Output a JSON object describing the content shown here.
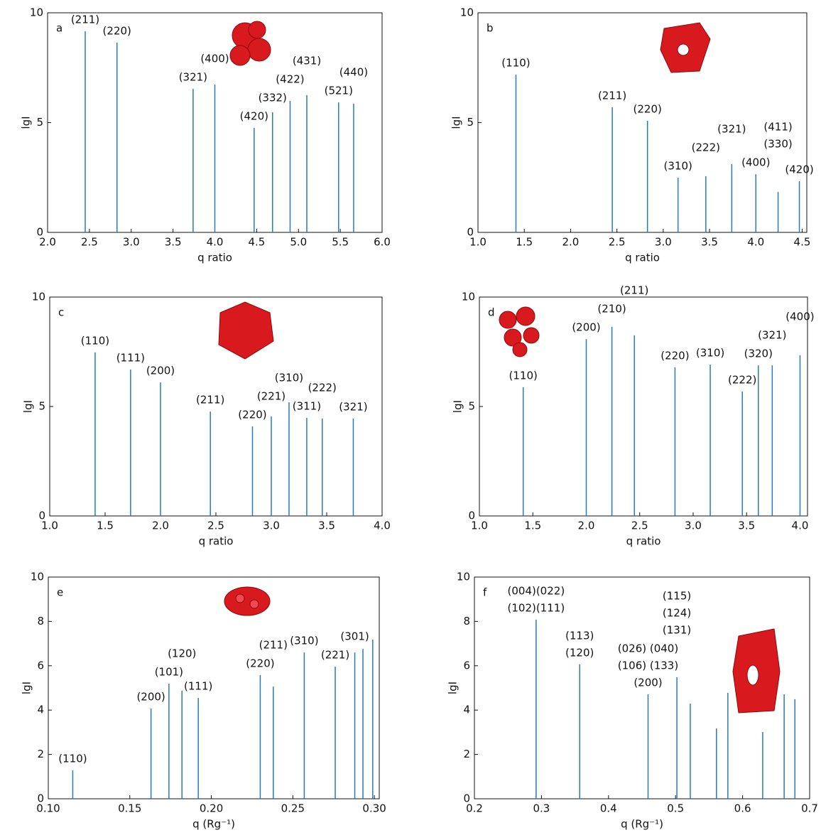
{
  "chart_data": [
    {
      "type": "stem",
      "panel": "a",
      "color": "#2a7ab8",
      "xlabel": "q ratio",
      "ylabel": "lgI",
      "x": [
        2.45,
        2.83,
        3.74,
        4.0,
        4.47,
        4.69,
        4.9,
        5.1,
        5.48,
        5.66
      ],
      "values": [
        9.16,
        8.64,
        6.54,
        6.73,
        4.76,
        5.47,
        5.99,
        6.25,
        5.92,
        5.86
      ],
      "labels": [
        [
          "(211)"
        ],
        [
          "(220)"
        ],
        [
          "(321)"
        ],
        [
          "(400)"
        ],
        [
          "(420)"
        ],
        [
          "(332)"
        ],
        [
          "(422)"
        ],
        [
          "(431)"
        ],
        [
          "(521)"
        ],
        [
          "(440)"
        ]
      ],
      "xlim": [
        2.0,
        6.0
      ],
      "ylim": [
        0,
        10
      ],
      "xticks": [
        {
          "value": 2,
          "label": "2.0"
        },
        2.5,
        {
          "value": 3,
          "label": "3.0"
        },
        3.5,
        {
          "value": 4,
          "label": "4.0"
        },
        4.5,
        {
          "value": 5,
          "label": "5.0"
        },
        5.5,
        {
          "value": 6,
          "label": "6.0"
        }
      ],
      "yticks": [
        0,
        5,
        10
      ]
    },
    {
      "type": "stem",
      "panel": "b",
      "color": "#2a7ab8",
      "xlabel": "q ratio",
      "ylabel": "lgI",
      "x": [
        1.41,
        2.45,
        2.83,
        3.16,
        3.46,
        3.74,
        4.0,
        4.24,
        4.47
      ],
      "values": [
        7.18,
        5.7,
        5.08,
        2.49,
        2.56,
        3.11,
        2.65,
        1.84,
        2.33
      ],
      "labels": [
        [
          "(110)"
        ],
        [
          "(211)"
        ],
        [
          "(220)"
        ],
        [
          "(310)"
        ],
        [
          "(222)"
        ],
        [
          "(321)"
        ],
        [
          "(400)"
        ],
        [
          "(411)",
          "(330)"
        ],
        [
          "(420)"
        ]
      ],
      "xlim": [
        1.0,
        4.55
      ],
      "ylim": [
        0,
        10
      ],
      "xticks": [
        {
          "value": 1,
          "label": "1.0"
        },
        1.5,
        {
          "value": 2,
          "label": "2.0"
        },
        2.5,
        {
          "value": 3,
          "label": "3.0"
        },
        3.5,
        {
          "value": 4,
          "label": "4.0"
        },
        4.5
      ],
      "yticks": [
        0,
        5,
        10
      ]
    },
    {
      "type": "stem",
      "panel": "c",
      "color": "#2a7ab8",
      "xlabel": "q ratio",
      "ylabel": "lgI",
      "x": [
        1.41,
        1.73,
        2.0,
        2.45,
        2.83,
        3.0,
        3.16,
        3.32,
        3.46,
        3.74
      ],
      "values": [
        7.47,
        6.69,
        6.1,
        4.77,
        4.09,
        4.55,
        5.19,
        4.48,
        4.45,
        4.45
      ],
      "labels": [
        [
          "(110)"
        ],
        [
          "(111)"
        ],
        [
          "(200)"
        ],
        [
          "(211)"
        ],
        [
          "(220)"
        ],
        [
          "(221)"
        ],
        [
          "(310)"
        ],
        [
          "(311)"
        ],
        [
          "(222)"
        ],
        [
          "(321)"
        ]
      ],
      "xlim": [
        1.0,
        4.0
      ],
      "ylim": [
        0,
        10
      ],
      "xticks": [
        {
          "value": 1,
          "label": "1.0"
        },
        1.5,
        {
          "value": 2,
          "label": "2.0"
        },
        2.5,
        {
          "value": 3,
          "label": "3.0"
        },
        3.5,
        {
          "value": 4,
          "label": "4.0"
        }
      ],
      "yticks": [
        0,
        5,
        10
      ]
    },
    {
      "type": "stem",
      "panel": "d",
      "color": "#2a7ab8",
      "xlabel": "q ratio",
      "ylabel": "lgI",
      "x": [
        1.41,
        2.0,
        2.24,
        2.45,
        2.83,
        3.16,
        3.46,
        3.61,
        3.74,
        4.0
      ],
      "values": [
        5.88,
        8.08,
        8.64,
        8.25,
        6.79,
        6.92,
        5.68,
        6.88,
        6.88,
        7.34
      ],
      "labels": [
        [
          "(110)"
        ],
        [
          "(200)"
        ],
        [
          "(210)"
        ],
        [
          "(211)"
        ],
        [
          "(220)"
        ],
        [
          "(310)"
        ],
        [
          "(222)"
        ],
        [
          "(320)"
        ],
        [
          "(321)"
        ],
        [
          "(400)"
        ]
      ],
      "xlim": [
        1.0,
        4.07
      ],
      "ylim": [
        0,
        10
      ],
      "xticks": [
        {
          "value": 1,
          "label": "1.0"
        },
        1.5,
        {
          "value": 2,
          "label": "2.0"
        },
        2.5,
        {
          "value": 3,
          "label": "3.0"
        },
        3.5,
        {
          "value": 4,
          "label": "4.0"
        }
      ],
      "yticks": [
        0,
        5,
        10
      ]
    },
    {
      "type": "stem",
      "panel": "e",
      "color": "#2a7ab8",
      "xlabel": "q (Rg⁻¹)",
      "ylabel": "lgI",
      "x": [
        0.115,
        0.163,
        0.174,
        0.182,
        0.192,
        0.23,
        0.238,
        0.257,
        0.276,
        0.288,
        0.293,
        0.299
      ],
      "values": [
        1.28,
        4.07,
        5.19,
        4.87,
        4.55,
        5.58,
        5.06,
        6.6,
        5.96,
        6.6,
        6.76,
        7.18
      ],
      "labels": [
        [
          "(110)"
        ],
        [
          "(200)"
        ],
        [
          "(101)"
        ],
        [
          "(120)"
        ],
        [
          "(111)"
        ],
        [
          "(220)"
        ],
        [
          "(211)"
        ],
        [
          "(310)"
        ],
        [
          "(221)"
        ],
        [
          "(301)"
        ],
        null,
        null
      ],
      "xlim": [
        0.1,
        0.303
      ],
      "ylim": [
        0,
        10
      ],
      "xticks": [
        {
          "value": 0.1,
          "label": "0.10"
        },
        0.15,
        {
          "value": 0.2,
          "label": "0.20"
        },
        0.25,
        {
          "value": 0.3,
          "label": "0.30"
        }
      ],
      "yticks": [
        0,
        2,
        4,
        6,
        8,
        10
      ]
    },
    {
      "type": "stem",
      "panel": "f",
      "color": "#2a7ab8",
      "xlabel": "q (Rg⁻¹)",
      "ylabel": "lgI",
      "x": [
        0.292,
        0.357,
        0.459,
        0.502,
        0.522,
        0.561,
        0.578,
        0.63,
        0.662,
        0.678
      ],
      "values": [
        8.08,
        6.06,
        4.71,
        5.48,
        4.29,
        3.17,
        4.78,
        3.01,
        4.71,
        4.49
      ],
      "labels": [
        [
          "(004)(022)",
          "(102)(111)"
        ],
        [
          "(113)",
          "(120)"
        ],
        [
          "(026) (040)",
          "(106) (133)",
          "(200)"
        ],
        [
          "(115)",
          "(124)",
          "(131)"
        ],
        null,
        null,
        null,
        null,
        null,
        null
      ],
      "xlim": [
        0.2,
        0.7
      ],
      "ylim": [
        0,
        10
      ],
      "xticks": [
        0.2,
        0.3,
        0.4,
        0.5,
        0.6,
        0.7
      ],
      "yticks": [
        0,
        2,
        4,
        6,
        8,
        10
      ]
    }
  ]
}
